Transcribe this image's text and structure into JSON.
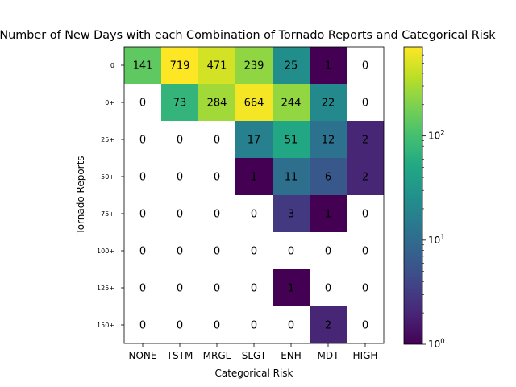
{
  "chart_data": {
    "type": "heatmap",
    "title": "Number of New Days with each Combination of Tornado Reports and Categorical Risk",
    "xlabel": "Categorical Risk",
    "ylabel": "Tornado Reports",
    "x_categories": [
      "NONE",
      "TSTM",
      "MRGL",
      "SLGT",
      "ENH",
      "MDT",
      "HIGH"
    ],
    "y_categories": [
      "0",
      "0+",
      "25+",
      "50+",
      "75+",
      "100+",
      "125+",
      "150+"
    ],
    "values": [
      [
        141,
        719,
        471,
        239,
        25,
        1,
        0
      ],
      [
        0,
        73,
        284,
        664,
        244,
        22,
        0
      ],
      [
        0,
        0,
        0,
        17,
        51,
        12,
        2
      ],
      [
        0,
        0,
        0,
        1,
        11,
        6,
        2
      ],
      [
        0,
        0,
        0,
        0,
        3,
        1,
        0
      ],
      [
        0,
        0,
        0,
        0,
        0,
        0,
        0
      ],
      [
        0,
        0,
        0,
        0,
        1,
        0,
        0
      ],
      [
        0,
        0,
        0,
        0,
        0,
        2,
        0
      ]
    ],
    "color_scale": "log",
    "colormap": "viridis",
    "zero_color": "#ffffff",
    "vmin": 1,
    "vmax": 719,
    "colorbar_ticks": [
      {
        "value": 1,
        "base": "10",
        "exp": "0"
      },
      {
        "value": 10,
        "base": "10",
        "exp": "1"
      },
      {
        "value": 100,
        "base": "10",
        "exp": "2"
      }
    ],
    "grid": false
  }
}
